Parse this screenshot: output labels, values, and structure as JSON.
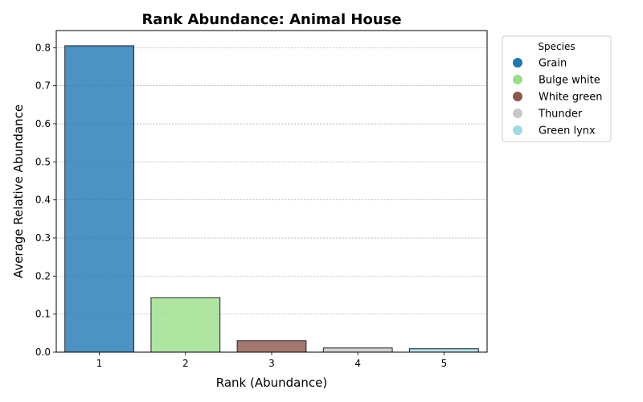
{
  "chart_data": {
    "type": "bar",
    "title": "Rank Abundance: Animal House",
    "xlabel": "Rank (Abundance)",
    "ylabel": "Average Relative Abundance",
    "categories": [
      "1",
      "2",
      "3",
      "4",
      "5"
    ],
    "values": [
      0.805,
      0.143,
      0.03,
      0.011,
      0.009
    ],
    "species": [
      "Grain",
      "Bulge white",
      "White green",
      "Thunder",
      "Green lynx"
    ],
    "colors": [
      "#1f77b4",
      "#98df8a",
      "#8c564b",
      "#c7c7c7",
      "#9edae5"
    ],
    "ylim": [
      0,
      0.845
    ],
    "yticks": [
      "0.0",
      "0.1",
      "0.2",
      "0.3",
      "0.4",
      "0.5",
      "0.6",
      "0.7",
      "0.8"
    ],
    "grid": "horizontal dashed",
    "legend": {
      "title": "Species",
      "placement": "outside top-right",
      "entries": [
        "Grain",
        "Bulge white",
        "White green",
        "Thunder",
        "Green lynx"
      ]
    }
  }
}
